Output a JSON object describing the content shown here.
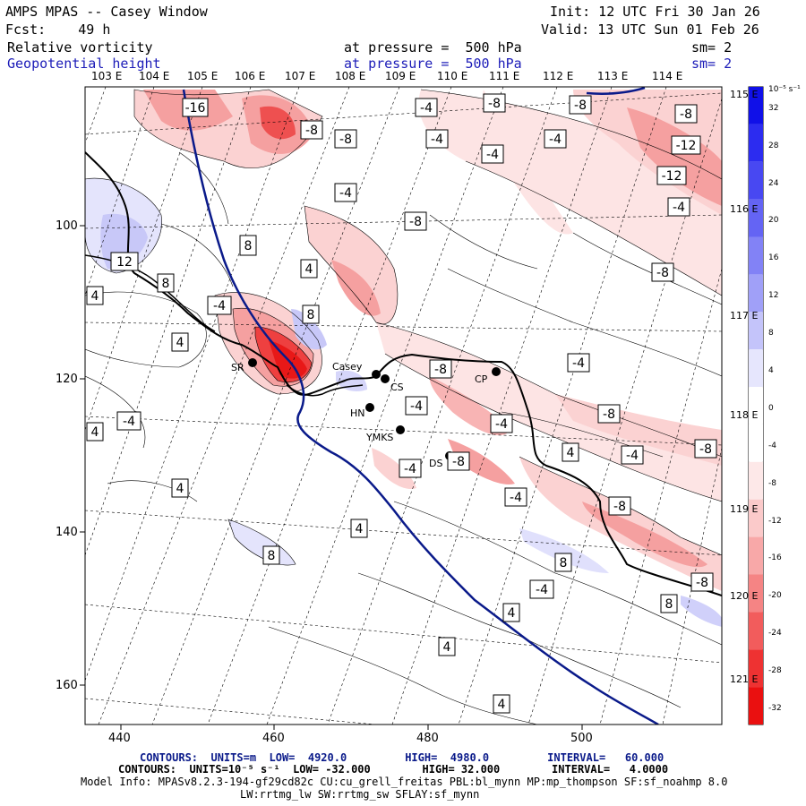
{
  "header": {
    "title": "AMPS MPAS -- Casey Window",
    "init": "Init: 12 UTC Fri 30 Jan 26",
    "forecast": "Fcst:    49 h",
    "valid": "Valid: 13 UTC Sun 01 Feb 26",
    "field1_name": "Relative vorticity",
    "field1_level": "at pressure =  500 hPa",
    "field1_sm": "sm= 2",
    "field2_name": "Geopotential height",
    "field2_level": "at pressure =  500 hPa",
    "field2_sm": "sm= 2"
  },
  "longitude_labels": [
    "103 E",
    "104 E",
    "105 E",
    "106 E",
    "107 E",
    "108 E",
    "109 E",
    "110 E",
    "111 E",
    "112 E",
    "113 E",
    "114 E"
  ],
  "latitude_labels": [
    "115 E",
    "116 E",
    "117 E",
    "118 E",
    "119 E",
    "120 E",
    "121 E"
  ],
  "x_axis_ticks": [
    "440",
    "460",
    "480",
    "500"
  ],
  "y_axis_ticks": [
    "100",
    "120",
    "140",
    "160"
  ],
  "colorbar": {
    "units": "10⁻⁵ s⁻¹",
    "labels": [
      "32",
      "28",
      "24",
      "20",
      "16",
      "12",
      "8",
      "4",
      "0",
      "-4",
      "-8",
      "-12",
      "-16",
      "-20",
      "-24",
      "-28",
      "-32"
    ],
    "colors": [
      "#1010e8",
      "#2c2cf0",
      "#4848f2",
      "#6464f4",
      "#8282f6",
      "#a0a0f8",
      "#c4c4fa",
      "#e6e6fd",
      "#ffffff",
      "#ffffff",
      "#fde8e8",
      "#fbcaca",
      "#f8a8a8",
      "#f58484",
      "#f25c5c",
      "#ee3232",
      "#ea1010"
    ]
  },
  "stations": [
    {
      "name": "SR"
    },
    {
      "name": "Casey"
    },
    {
      "name": "CS"
    },
    {
      "name": "HN"
    },
    {
      "name": "YMKS"
    },
    {
      "name": "DS"
    },
    {
      "name": "CP"
    }
  ],
  "contour_labels": {
    "neg16": "-16",
    "neg12": "-12",
    "neg8": "-8",
    "neg4": "-4",
    "pos4": "4",
    "pos8": "8",
    "pos12": "12"
  },
  "footer": {
    "height_contours": "CONTOURS:  UNITS=m  LOW=  4920.0         HIGH=  4980.0         INTERVAL=   60.000",
    "vort_contours": "CONTOURS:  UNITS=10⁻⁵ s⁻¹  LOW= -32.000        HIGH= 32.000        INTERVAL=   4.0000",
    "model_info": "Model Info: MPASv8.2.3-194-gf29cd82c CU:cu_grell_freitas PBL:bl_mynn MP:mp_thompson SF:sf_noahmp 8.0",
    "model_info2": "LW:rrtmg_lw SW:rrtmg_sw SFLAY:sf_mynn"
  }
}
